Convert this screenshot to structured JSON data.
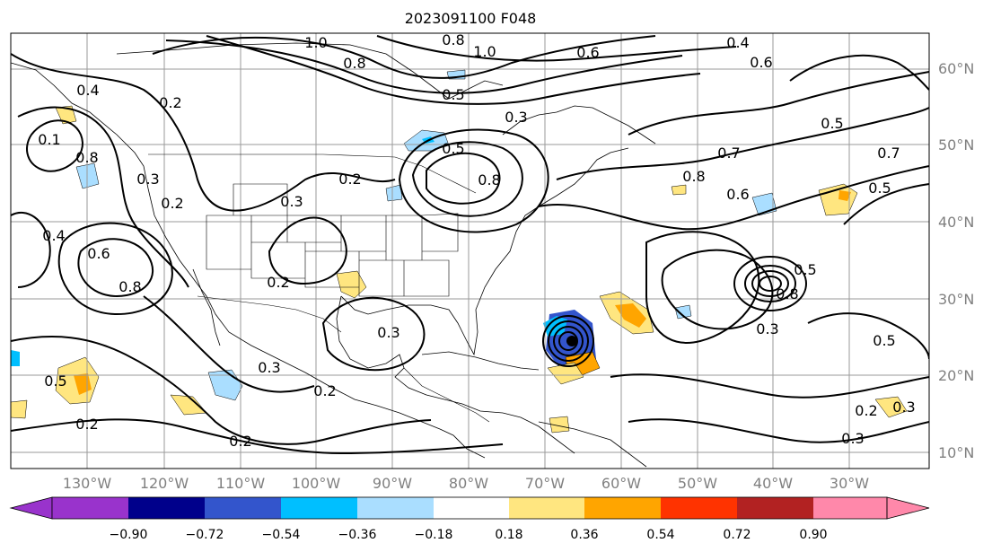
{
  "title": "2023091100 F048",
  "lat_labels": [
    "60°N",
    "50°N",
    "40°N",
    "30°N",
    "20°N",
    "10°N"
  ],
  "lon_labels": [
    "130°W",
    "120°W",
    "110°W",
    "100°W",
    "90°W",
    "80°W",
    "70°W",
    "60°W",
    "50°W",
    "40°W",
    "30°W"
  ],
  "colorbar": {
    "colors": [
      "#9933cc",
      "#00008b",
      "#3355cc",
      "#00bfff",
      "#aadeff",
      "#ffffff",
      "#ffe680",
      "#ffa500",
      "#ff3300",
      "#b22222",
      "#ff88aa"
    ],
    "under_color": "#9933cc",
    "over_color": "#ff88aa",
    "tick_labels": [
      "−0.90",
      "−0.72",
      "−0.54",
      "−0.36",
      "−0.18",
      "0.18",
      "0.36",
      "0.54",
      "0.72",
      "0.90"
    ]
  },
  "contour_labels": [
    "1.0",
    "0.8",
    "1.0",
    "0.4",
    "0.6",
    "0.8",
    "0.5",
    "0.3",
    "0.2",
    "0.4",
    "0.6",
    "0.1",
    "0.8",
    "0.3",
    "0.2",
    "0.7",
    "0.5",
    "0.8",
    "0.6",
    "0.7",
    "0.5",
    "0.5",
    "0.2",
    "0.3",
    "0.8",
    "0.4",
    "0.6",
    "0.8",
    "0.2",
    "0.3",
    "0.3",
    "0.2",
    "0.3",
    "0.5",
    "0.2",
    "0.2",
    "0.3",
    "0.8",
    "0.5",
    "0.3",
    "0.2",
    "0.5"
  ]
}
